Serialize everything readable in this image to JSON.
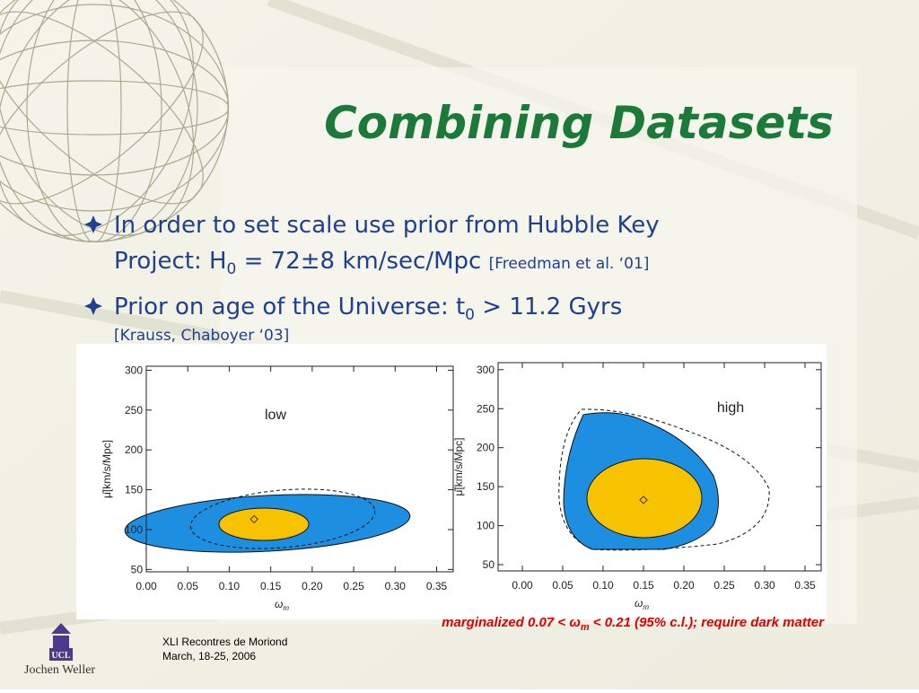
{
  "title": "Combining Datasets",
  "bullets": [
    {
      "line1": "In order to set scale use prior from Hubble Key",
      "line2": "Project: H",
      "sub": "0",
      "rest": " = 72±8 km/sec/Mpc ",
      "ref": "[Freedman et al. ‘01]"
    },
    {
      "line1": "Prior on age of the Universe: t",
      "sub": "0",
      "rest": " > 11.2 Gyrs",
      "ref": "[Krauss, Chaboyer ‘03]"
    }
  ],
  "chart_data": [
    {
      "type": "contour",
      "annotation": "low",
      "ylabel": "μ̂[km/s/Mpc]",
      "xlabel": "ω",
      "xlabel_sub": "m",
      "xlim": [
        0,
        0.37
      ],
      "ylim": [
        47,
        305
      ],
      "xticks": [
        {
          "value": 0,
          "label": "0.00"
        },
        0.05,
        {
          "value": 0.1,
          "label": "0.10"
        },
        0.15,
        {
          "value": 0.2,
          "label": "0.20"
        },
        0.25,
        {
          "value": 0.3,
          "label": "0.30"
        },
        0.35
      ],
      "yticks": [
        50,
        100,
        150,
        200,
        250,
        300
      ],
      "x": [
        0.13
      ],
      "values": [
        113
      ]
    },
    {
      "type": "contour",
      "annotation": "high",
      "ylabel": "μ̂[km/s/Mpc]",
      "xlabel": "ω",
      "xlabel_sub": "m",
      "xlim": [
        -0.03,
        0.37
      ],
      "ylim": [
        42,
        309
      ],
      "xticks": [
        {
          "value": 0,
          "label": "0.00"
        },
        0.05,
        {
          "value": 0.1,
          "label": "0.10"
        },
        0.15,
        {
          "value": 0.2,
          "label": "0.20"
        },
        0.25,
        {
          "value": 0.3,
          "label": "0.30"
        },
        0.35
      ],
      "yticks": [
        50,
        100,
        150,
        200,
        250,
        300
      ],
      "x": [
        0.15
      ],
      "values": [
        133
      ]
    }
  ],
  "caption": {
    "pre": "marginalized 0.07 < ",
    "sym": "ω",
    "sub": "m",
    "post": " < 0.21 (95% c.l.); require dark matter"
  },
  "footer": {
    "logo": "UCL",
    "author": "Jochen Weller",
    "event": "XLI Recontres de Moriond",
    "date": "March, 18-25, 2006"
  }
}
